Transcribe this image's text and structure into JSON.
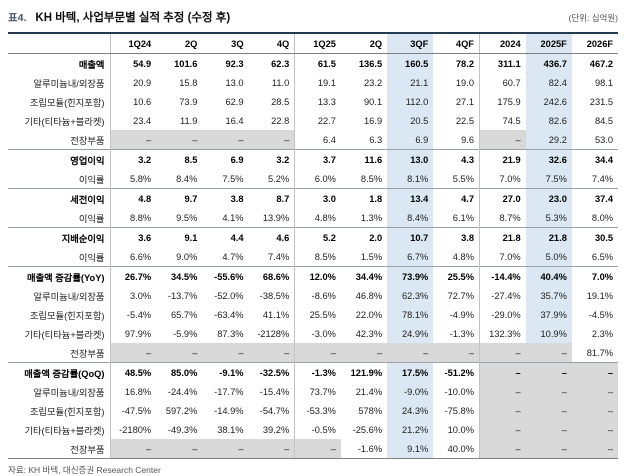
{
  "title": {
    "prefix": "표4.",
    "text": "KH 바텍, 사업부문별 실적 추정 (수정 후)",
    "unit": "(단위: 십억원)"
  },
  "footer": {
    "source": "자료: KH 바텍, 대신증권 Research Center"
  },
  "colors": {
    "highlight_blue": "#dbe7f2",
    "shade_gray": "#d9d9d9",
    "top_border": "#263c52"
  },
  "chart_data": {
    "type": "table",
    "title": "KH 바텍, 사업부문별 실적 추정 (수정 후)",
    "unit": "십억원",
    "columns": [
      "1Q24",
      "2Q",
      "3Q",
      "4Q",
      "1Q25",
      "2Q",
      "3QF",
      "4QF",
      "2024",
      "2025F",
      "2026F"
    ],
    "highlight_columns": [
      6,
      9
    ],
    "group_divider_after": [
      3,
      7
    ],
    "rows": [
      {
        "label": "매출액",
        "bold": true,
        "values": [
          "54.9",
          "101.6",
          "92.3",
          "62.3",
          "61.5",
          "136.5",
          "160.5",
          "78.2",
          "311.1",
          "436.7",
          "467.2"
        ],
        "gray": []
      },
      {
        "label": "알루미늄내/외장품",
        "bold": false,
        "values": [
          "20.9",
          "15.8",
          "13.0",
          "11.0",
          "19.1",
          "23.2",
          "21.1",
          "19.0",
          "60.7",
          "82.4",
          "98.1"
        ],
        "gray": []
      },
      {
        "label": "조립모듈(힌지포함)",
        "bold": false,
        "values": [
          "10.6",
          "73.9",
          "62.9",
          "28.5",
          "13.3",
          "90.1",
          "112.0",
          "27.1",
          "175.9",
          "242.6",
          "231.5"
        ],
        "gray": []
      },
      {
        "label": "기타(티타늄+블라켓)",
        "bold": false,
        "values": [
          "23.4",
          "11.9",
          "16.4",
          "22.8",
          "22.7",
          "16.9",
          "20.5",
          "22.5",
          "74.5",
          "82.6",
          "84.5"
        ],
        "gray": []
      },
      {
        "label": "전장부품",
        "bold": false,
        "values": [
          "–",
          "–",
          "–",
          "–",
          "6.4",
          "6.3",
          "6.9",
          "9.6",
          "–",
          "29.2",
          "53.0"
        ],
        "gray": [
          0,
          1,
          2,
          3,
          8
        ]
      },
      {
        "label": "영업이익",
        "bold": true,
        "section": true,
        "values": [
          "3.2",
          "8.5",
          "6.9",
          "3.2",
          "3.7",
          "11.6",
          "13.0",
          "4.3",
          "21.9",
          "32.6",
          "34.4"
        ],
        "gray": []
      },
      {
        "label": "이익률",
        "bold": false,
        "values": [
          "5.8%",
          "8.4%",
          "7.5%",
          "5.2%",
          "6.0%",
          "8.5%",
          "8.1%",
          "5.5%",
          "7.0%",
          "7.5%",
          "7.4%"
        ],
        "gray": []
      },
      {
        "label": "세전이익",
        "bold": true,
        "section": true,
        "values": [
          "4.8",
          "9.7",
          "3.8",
          "8.7",
          "3.0",
          "1.8",
          "13.4",
          "4.7",
          "27.0",
          "23.0",
          "37.4"
        ],
        "gray": []
      },
      {
        "label": "이익률",
        "bold": false,
        "values": [
          "8.8%",
          "9.5%",
          "4.1%",
          "13.9%",
          "4.8%",
          "1.3%",
          "8.4%",
          "6.1%",
          "8.7%",
          "5.3%",
          "8.0%"
        ],
        "gray": []
      },
      {
        "label": "지배순이익",
        "bold": true,
        "section": true,
        "values": [
          "3.6",
          "9.1",
          "4.4",
          "4.6",
          "5.2",
          "2.0",
          "10.7",
          "3.8",
          "21.8",
          "21.8",
          "30.5"
        ],
        "gray": []
      },
      {
        "label": "이익률",
        "bold": false,
        "values": [
          "6.6%",
          "9.0%",
          "4.7%",
          "7.4%",
          "8.5%",
          "1.5%",
          "6.7%",
          "4.8%",
          "7.0%",
          "5.0%",
          "6.5%"
        ],
        "gray": []
      },
      {
        "label": "매출액 증감률(YoY)",
        "bold": true,
        "section": true,
        "values": [
          "26.7%",
          "34.5%",
          "-55.6%",
          "68.6%",
          "12.0%",
          "34.4%",
          "73.9%",
          "25.5%",
          "-14.4%",
          "40.4%",
          "7.0%"
        ],
        "gray": []
      },
      {
        "label": "알루미늄내/외장품",
        "bold": false,
        "values": [
          "3.0%",
          "-13.7%",
          "-52.0%",
          "-38.5%",
          "-8.6%",
          "46.8%",
          "62.3%",
          "72.7%",
          "-27.4%",
          "35.7%",
          "19.1%"
        ],
        "gray": []
      },
      {
        "label": "조립모듈(힌지포함)",
        "bold": false,
        "values": [
          "-5.4%",
          "65.7%",
          "-63.4%",
          "41.1%",
          "25.5%",
          "22.0%",
          "78.1%",
          "-4.9%",
          "-29.0%",
          "37.9%",
          "-4.5%"
        ],
        "gray": []
      },
      {
        "label": "기타(티타늄+블라켓)",
        "bold": false,
        "values": [
          "97.9%",
          "-5.9%",
          "87.3%",
          "-2128%",
          "-3.0%",
          "42.3%",
          "24.9%",
          "-1.3%",
          "132.3%",
          "10.9%",
          "2.3%"
        ],
        "gray": []
      },
      {
        "label": "전장부품",
        "bold": false,
        "values": [
          "–",
          "–",
          "–",
          "–",
          "–",
          "–",
          "–",
          "–",
          "–",
          "–",
          "81.7%"
        ],
        "gray": [
          0,
          1,
          2,
          3,
          4,
          5,
          6,
          7,
          8,
          9
        ]
      },
      {
        "label": "매출액 증감률(QoQ)",
        "bold": true,
        "section": true,
        "values": [
          "48.5%",
          "85.0%",
          "-9.1%",
          "-32.5%",
          "-1.3%",
          "121.9%",
          "17.5%",
          "-51.2%",
          "–",
          "–",
          "–"
        ],
        "gray": [
          8,
          9,
          10
        ]
      },
      {
        "label": "알루미늄내/외장품",
        "bold": false,
        "values": [
          "16.8%",
          "-24.4%",
          "-17.7%",
          "-15.4%",
          "73.7%",
          "21.4%",
          "-9.0%",
          "-10.0%",
          "–",
          "–",
          "–"
        ],
        "gray": [
          8,
          9,
          10
        ]
      },
      {
        "label": "조립모듈(힌지포함)",
        "bold": false,
        "values": [
          "-47.5%",
          "597.2%",
          "-14.9%",
          "-54.7%",
          "-53.3%",
          "578%",
          "24.3%",
          "-75.8%",
          "–",
          "–",
          "–"
        ],
        "gray": [
          8,
          9,
          10
        ]
      },
      {
        "label": "기타(티타늄+블라켓)",
        "bold": false,
        "values": [
          "-2180%",
          "-49.3%",
          "38.1%",
          "39.2%",
          "-0.5%",
          "-25.6%",
          "21.2%",
          "10.0%",
          "–",
          "–",
          "–"
        ],
        "gray": [
          8,
          9,
          10
        ]
      },
      {
        "label": "전장부품",
        "bold": false,
        "values": [
          "–",
          "–",
          "–",
          "–",
          "–",
          "-1.6%",
          "9.1%",
          "40.0%",
          "–",
          "–",
          "–"
        ],
        "gray": [
          0,
          1,
          2,
          3,
          4,
          8,
          9,
          10
        ]
      }
    ]
  }
}
